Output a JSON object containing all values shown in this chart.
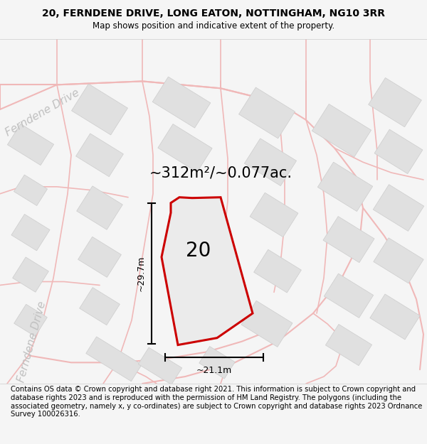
{
  "title": "20, FERNDENE DRIVE, LONG EATON, NOTTINGHAM, NG10 3RR",
  "subtitle": "Map shows position and indicative extent of the property.",
  "area_text": "~312m²/~0.077ac.",
  "plot_number": "20",
  "dim_width": "~21.1m",
  "dim_height": "~29.7m",
  "footer": "Contains OS data © Crown copyright and database right 2021. This information is subject to Crown copyright and database rights 2023 and is reproduced with the permission of HM Land Registry. The polygons (including the associated geometry, namely x, y co-ordinates) are subject to Crown copyright and database rights 2023 Ordnance Survey 100026316.",
  "bg_color": "#f5f5f5",
  "map_bg": "#ffffff",
  "road_color": "#f0b8b8",
  "building_color": "#e0e0e0",
  "building_edge": "#cccccc",
  "plot_fill": "#ebebeb",
  "plot_outline": "#cc0000",
  "title_fontsize": 10,
  "subtitle_fontsize": 8.5,
  "area_fontsize": 15,
  "plot_num_fontsize": 20,
  "footer_fontsize": 7.2,
  "road_label_color": "#c0c0c0",
  "road_label_fontsize": 11,
  "dim_fontsize": 9
}
